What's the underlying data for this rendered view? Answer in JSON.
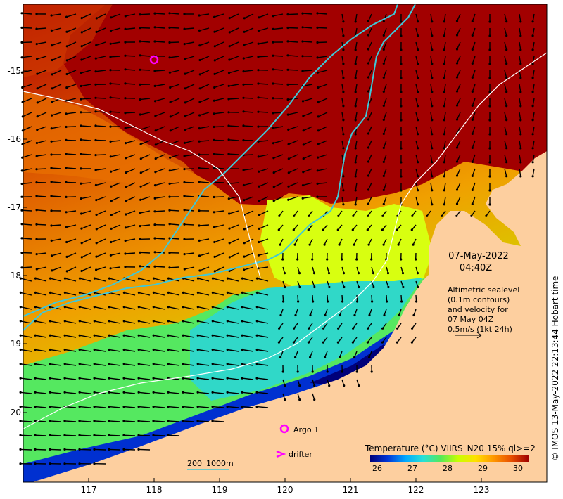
{
  "map": {
    "timestamp_date": "07-May-2022",
    "timestamp_time": "04:40Z",
    "info_lines": [
      "Altimetric sealevel",
      "(0.1m contours)",
      "and velocity for",
      "07 May 04Z",
      "0.5m/s (1kt 24h)"
    ],
    "credit": "© IMOS 13-May-2022 22:13:44 Hobart time",
    "lat_labels": [
      "-15",
      "-16",
      "-17",
      "-18",
      "-19",
      "-20"
    ],
    "lon_labels": [
      "117",
      "118",
      "119",
      "120",
      "121",
      "122",
      "123"
    ],
    "legend": {
      "argo_label": "Argo 1",
      "drifter_label": "drifter",
      "bathy_label_200": "200",
      "bathy_label_1000": "1000m"
    },
    "colorbar": {
      "title": "Temperature (°C) VIIRS_N20 15% ql>=2",
      "ticks": [
        "26",
        "27",
        "28",
        "29",
        "30"
      ],
      "stops": [
        "#00007a",
        "#0036d8",
        "#00a8ff",
        "#27e0d8",
        "#55e85a",
        "#c8ff00",
        "#ffe000",
        "#ff9800",
        "#e85000",
        "#a00000"
      ]
    },
    "colors": {
      "land": "#fdcf9f",
      "hot": "#a20000",
      "bathy_contour": "#3fc8d8",
      "sealevel_contour": "#ffffff",
      "argo": "#ff00ff"
    }
  }
}
